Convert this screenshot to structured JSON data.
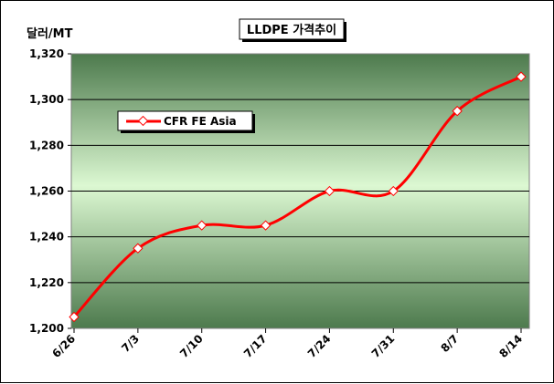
{
  "chart_data": {
    "type": "line",
    "title": "LLDPE 가격추이",
    "ylabel": "달러/MT",
    "xlabel": "",
    "categories": [
      "6/26",
      "7/3",
      "7/10",
      "7/17",
      "7/24",
      "7/31",
      "8/7",
      "8/14"
    ],
    "series": [
      {
        "name": "CFR FE Asia",
        "values": [
          1205,
          1235,
          1245,
          1245,
          1260,
          1260,
          1295,
          1310
        ]
      }
    ],
    "ylim": [
      1200,
      1320
    ],
    "yticks": [
      1200,
      1220,
      1240,
      1260,
      1280,
      1300,
      1320
    ],
    "ytick_labels": [
      "1,200",
      "1,220",
      "1,240",
      "1,260",
      "1,280",
      "1,300",
      "1,320"
    ],
    "grid": true,
    "legend_position": "top-left",
    "colors": {
      "line": "#ff0000",
      "marker_fill": "#ffffff",
      "grid": "#000000"
    }
  }
}
